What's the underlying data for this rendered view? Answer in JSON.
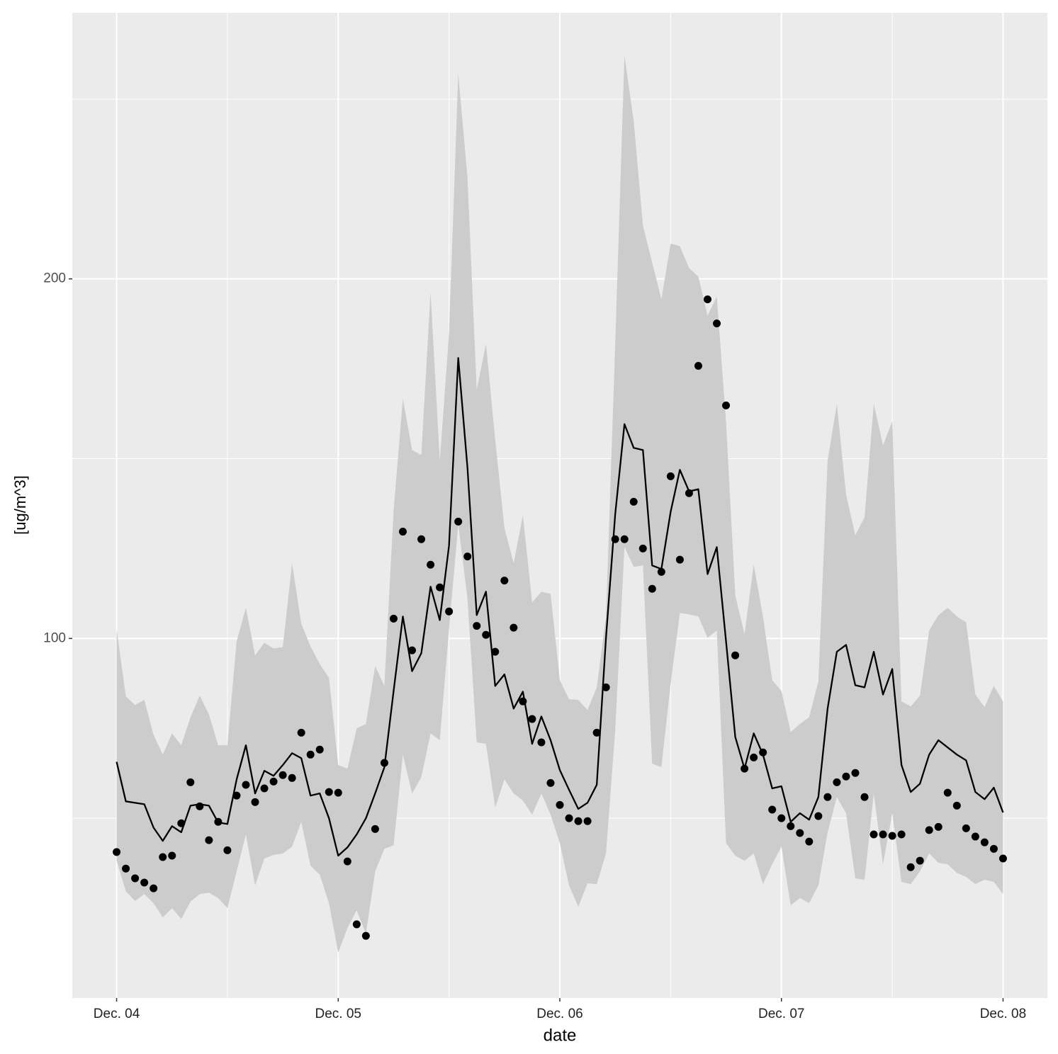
{
  "chart_data": {
    "type": "line",
    "x_label": "date",
    "y_label": "[ug/m^3]",
    "xlim": [
      -4.8,
      100.8
    ],
    "ylim": [
      0,
      274
    ],
    "xticks": [
      {
        "value": 0,
        "label": "Dec. 04"
      },
      {
        "value": 24,
        "label": "Dec. 05"
      },
      {
        "value": 48,
        "label": "Dec. 06"
      },
      {
        "value": 72,
        "label": "Dec. 07"
      },
      {
        "value": 96,
        "label": "Dec. 08"
      }
    ],
    "yticks": [
      100,
      200
    ],
    "minor_xticks": [
      12,
      36,
      60,
      84
    ],
    "minor_yticks": [
      50,
      150,
      250
    ],
    "grid": true,
    "x": [
      0,
      1,
      2,
      3,
      4,
      5,
      6,
      7,
      8,
      9,
      10,
      11,
      12,
      13,
      14,
      15,
      16,
      17,
      18,
      19,
      20,
      21,
      22,
      23,
      24,
      25,
      26,
      27,
      28,
      29,
      30,
      31,
      32,
      33,
      34,
      35,
      36,
      37,
      38,
      39,
      40,
      41,
      42,
      43,
      44,
      45,
      46,
      47,
      48,
      49,
      50,
      51,
      52,
      53,
      54,
      55,
      56,
      57,
      58,
      59,
      60,
      61,
      62,
      63,
      64,
      65,
      66,
      67,
      68,
      69,
      70,
      71,
      72,
      73,
      74,
      75,
      76,
      77,
      78,
      79,
      80,
      81,
      82,
      83,
      84,
      85,
      86,
      87,
      88,
      89,
      90,
      91,
      92,
      93,
      94,
      95,
      96
    ],
    "series": [
      {
        "kind": "ribbon",
        "color": "#cccccc",
        "upper": [
          102.6,
          83.9,
          81.5,
          82.9,
          73.2,
          67.7,
          73.6,
          70.3,
          78.1,
          84.1,
          78.9,
          70.3,
          70.3,
          99.2,
          108.5,
          95.3,
          98.8,
          97.2,
          97.6,
          120.9,
          104.1,
          97.8,
          92.9,
          89.0,
          64.8,
          63.8,
          75.0,
          76.2,
          92.3,
          86.8,
          135.6,
          166.7,
          152.4,
          151.0,
          196.3,
          149.4,
          184.8,
          257.1,
          228.1,
          169.1,
          181.9,
          155.3,
          130.7,
          120.9,
          134.3,
          110.0,
          113.0,
          112.4,
          88.4,
          83.1,
          82.9,
          80.1,
          86.4,
          106.1,
          181.9,
          262.0,
          243.9,
          214.8,
          204.5,
          194.3,
          209.8,
          209.1,
          203.0,
          200.6,
          189.8,
          195.1,
          160.2,
          112.0,
          101.2,
          120.5,
          106.1,
          88.4,
          85.4,
          74.0,
          76.2,
          78.1,
          88.0,
          149.4,
          165.2,
          140.0,
          128.7,
          133.7,
          165.2,
          153.7,
          160.4,
          82.5,
          81.1,
          84.1,
          102.2,
          106.5,
          108.5,
          106.1,
          104.5,
          84.4,
          80.9,
          86.8,
          82.5
        ],
        "lower": [
          38.2,
          29.7,
          27.0,
          28.9,
          26.4,
          22.4,
          25.0,
          22.0,
          26.8,
          28.9,
          29.3,
          27.8,
          25.0,
          35.2,
          45.5,
          31.3,
          38.8,
          39.8,
          40.2,
          42.1,
          49.0,
          36.8,
          34.3,
          26.4,
          12.6,
          19.5,
          24.4,
          17.9,
          35.2,
          41.5,
          42.5,
          67.7,
          56.9,
          61.4,
          73.6,
          71.7,
          102.6,
          131.7,
          111.0,
          71.1,
          70.7,
          53.0,
          60.8,
          56.9,
          54.9,
          51.0,
          56.9,
          51.0,
          43.1,
          31.3,
          25.4,
          31.9,
          31.7,
          40.2,
          74.6,
          125.4,
          119.9,
          120.3,
          65.2,
          64.2,
          87.4,
          107.1,
          106.7,
          106.1,
          100.2,
          102.2,
          43.1,
          39.6,
          38.2,
          40.2,
          31.7,
          37.2,
          42.1,
          25.8,
          27.8,
          26.4,
          31.3,
          46.1,
          55.9,
          51.4,
          33.3,
          32.9,
          56.9,
          37.2,
          51.4,
          32.3,
          31.7,
          35.2,
          40.2,
          37.6,
          37.2,
          34.8,
          33.7,
          31.7,
          32.9,
          32.3,
          28.9
        ]
      },
      {
        "kind": "line",
        "color": "#000000",
        "values": [
          65.7,
          54.7,
          54.3,
          53.9,
          47.4,
          43.7,
          47.8,
          46.1,
          53.5,
          53.9,
          53.5,
          48.8,
          48.4,
          60.8,
          70.3,
          56.9,
          63.2,
          61.8,
          64.8,
          68.1,
          66.7,
          56.3,
          56.9,
          50.0,
          39.6,
          41.9,
          45.5,
          50.0,
          56.9,
          64.2,
          85.4,
          106.1,
          90.9,
          95.9,
          114.4,
          105.1,
          125.8,
          178.0,
          147.4,
          106.5,
          113.0,
          86.8,
          90.0,
          80.5,
          85.2,
          70.7,
          78.3,
          71.7,
          63.4,
          57.9,
          52.6,
          54.3,
          59.3,
          100.2,
          134.6,
          159.6,
          153.0,
          152.4,
          120.3,
          119.3,
          135.2,
          146.9,
          140.9,
          141.5,
          117.9,
          125.4,
          99.2,
          72.6,
          63.8,
          73.6,
          67.7,
          58.3,
          58.9,
          49.0,
          51.4,
          49.6,
          55.9,
          80.5,
          96.3,
          98.2,
          87.0,
          86.4,
          96.3,
          84.4,
          91.5,
          64.8,
          57.3,
          59.6,
          67.7,
          71.7,
          69.7,
          67.7,
          66.1,
          57.3,
          55.3,
          58.5,
          51.6
        ]
      },
      {
        "kind": "points",
        "color": "#000000",
        "values": [
          40.6,
          36.0,
          33.3,
          32.1,
          30.5,
          39.2,
          39.6,
          48.6,
          60.0,
          53.3,
          43.9,
          49.0,
          41.1,
          56.3,
          59.3,
          54.5,
          58.3,
          60.2,
          62.0,
          61.2,
          73.8,
          67.7,
          69.1,
          57.3,
          57.1,
          38.0,
          20.5,
          17.3,
          47.0,
          65.4,
          105.5,
          129.7,
          96.7,
          127.6,
          120.5,
          114.2,
          107.5,
          132.5,
          122.8,
          103.5,
          101.0,
          96.3,
          116.1,
          103.0,
          82.5,
          77.6,
          71.1,
          59.8,
          53.7,
          50.0,
          49.2,
          49.2,
          73.8,
          86.4,
          127.6,
          127.6,
          138.0,
          125.0,
          113.8,
          118.5,
          145.1,
          121.9,
          140.4,
          175.8,
          194.3,
          187.6,
          164.8,
          95.3,
          63.8,
          66.9,
          68.3,
          52.4,
          50.0,
          47.8,
          45.9,
          43.5,
          50.6,
          55.9,
          60.0,
          61.6,
          62.6,
          55.9,
          45.5,
          45.5,
          45.1,
          45.5,
          36.4,
          38.2,
          46.7,
          47.6,
          57.1,
          53.5,
          47.2,
          44.9,
          43.3,
          41.5,
          38.8
        ]
      }
    ]
  }
}
